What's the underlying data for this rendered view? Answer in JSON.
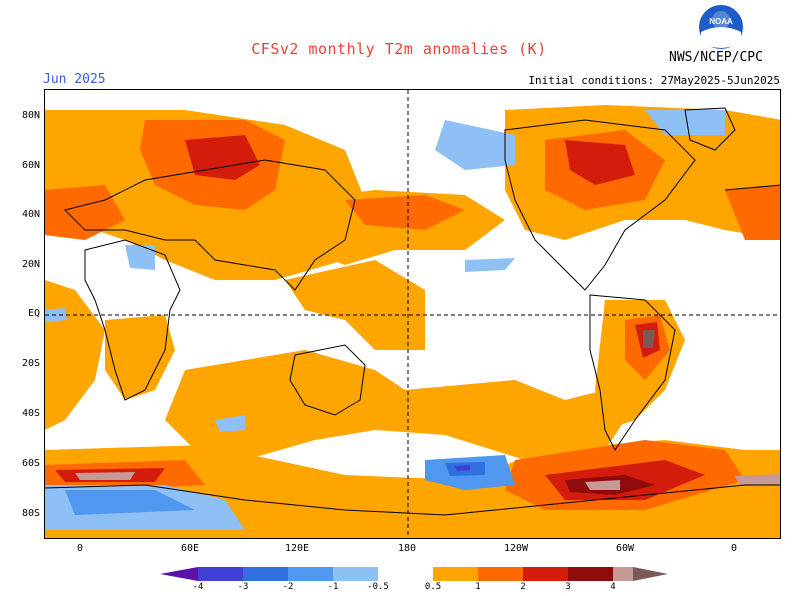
{
  "header": {
    "title": "CFSv2 monthly T2m anomalies (K)",
    "month": "Jun 2025",
    "initial_conditions": "Initial conditions: 27May2025-5Jun2025",
    "org": "NWS/NCEP/CPC",
    "logo_text": "NOAA"
  },
  "axes": {
    "lat_labels": [
      "80N",
      "60N",
      "40N",
      "20N",
      "EQ",
      "20S",
      "40S",
      "60S",
      "80S"
    ],
    "lon_labels": [
      "0",
      "60E",
      "120E",
      "180",
      "120W",
      "60W",
      "0"
    ]
  },
  "colorbar": {
    "ticks": [
      "-4",
      "-3",
      "-2",
      "-1",
      "-0.5",
      "0.5",
      "1",
      "2",
      "3",
      "4"
    ],
    "colors": [
      "#5a12a8",
      "#3f3fd6",
      "#2f6fe0",
      "#4f97ef",
      "#8fc0f5",
      "#ffffff",
      "#ffa500",
      "#ff6a00",
      "#d41c0c",
      "#8f0a0a",
      "#c69a96",
      "#7a5a58"
    ]
  },
  "colors": {
    "title": "#e8413a",
    "month": "#3b5bd9"
  }
}
